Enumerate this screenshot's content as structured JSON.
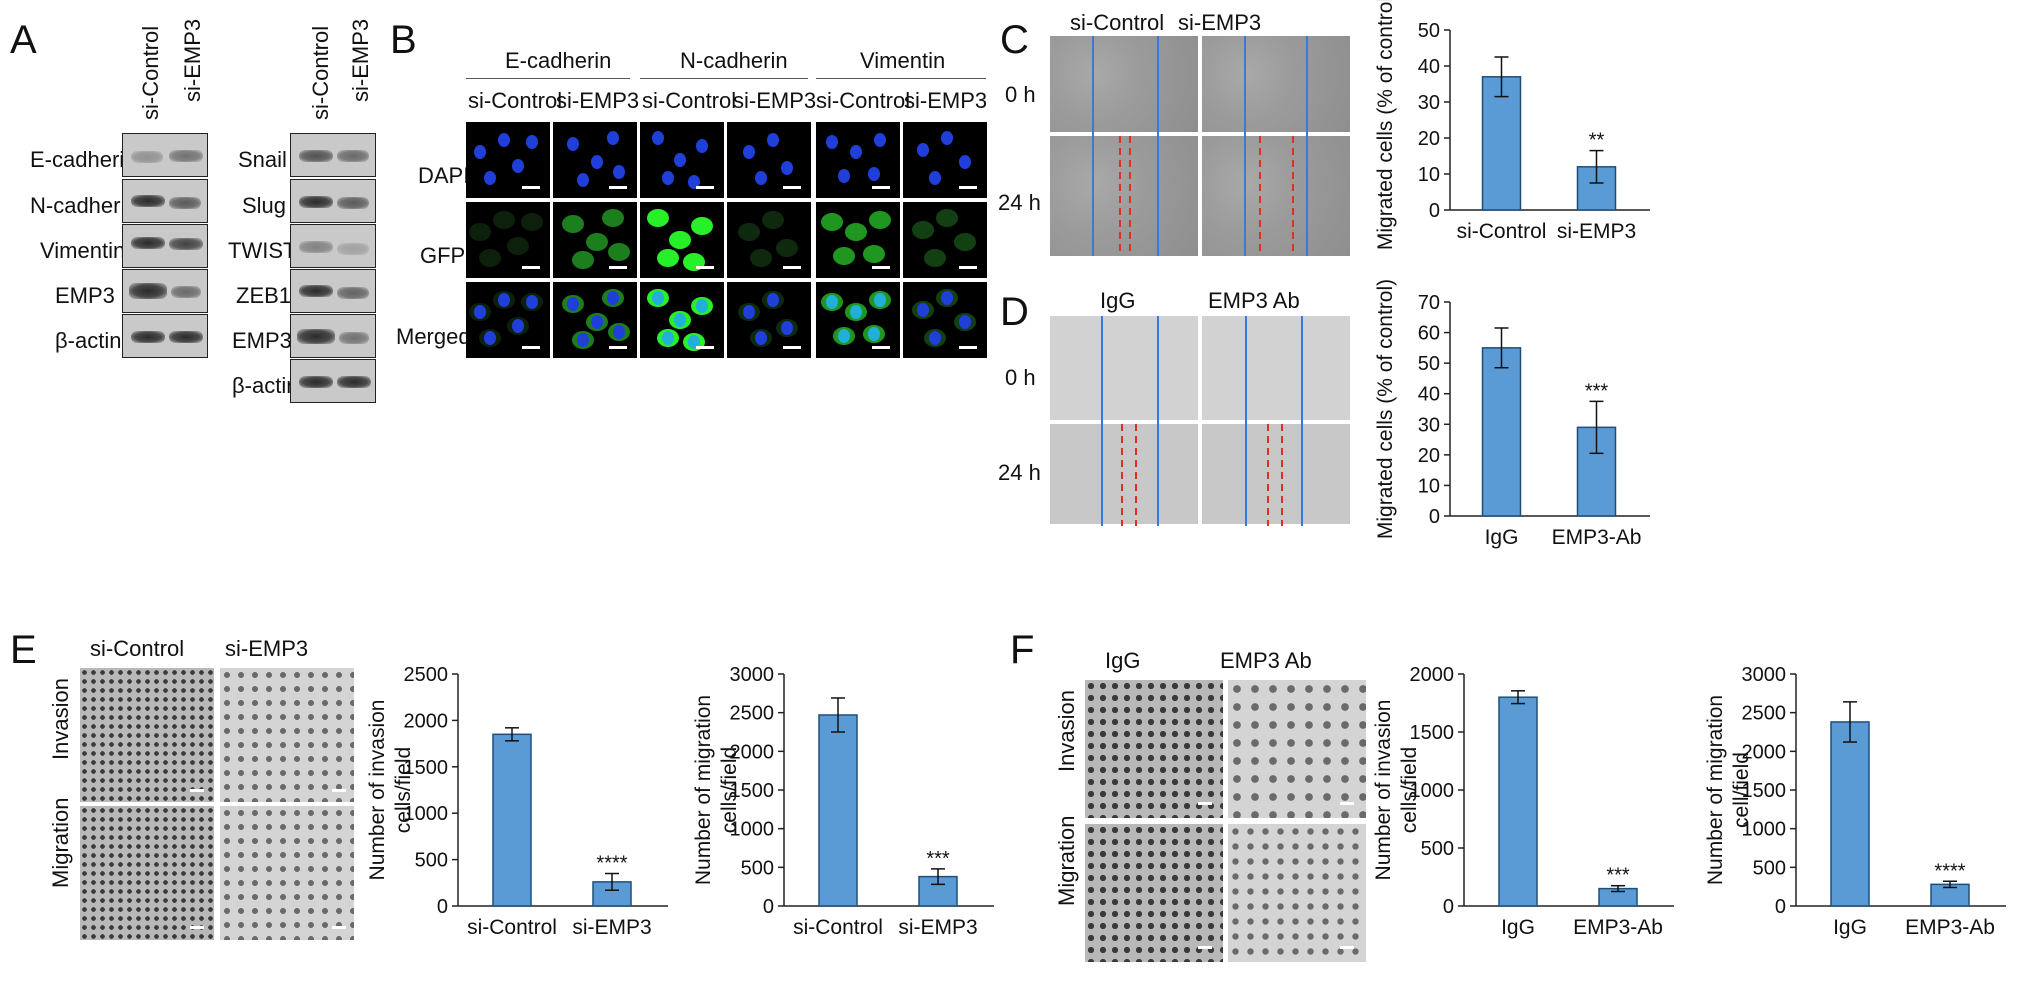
{
  "panels": [
    "A",
    "B",
    "C",
    "D",
    "E",
    "F"
  ],
  "panel_a": {
    "lanes": [
      "si-Control",
      "si-EMP3"
    ],
    "left_rows": [
      "E-cadherin",
      "N-cadherin",
      "Vimentin",
      "EMP3",
      "β-actin"
    ],
    "right_rows": [
      "Snail",
      "Slug",
      "TWIST",
      "ZEB1",
      "EMP3",
      "β-actin"
    ]
  },
  "panel_b": {
    "groups": [
      "E-cadherin",
      "N-cadherin",
      "Vimentin"
    ],
    "columns": [
      "si-Control",
      "si-EMP3",
      "si-Control",
      "si-EMP3",
      "si-Control",
      "si-EMP3"
    ],
    "rows": [
      "DAPI",
      "GFP",
      "Merged"
    ]
  },
  "panel_c": {
    "columns": [
      "si-Control",
      "si-EMP3"
    ],
    "times": [
      "0 h",
      "24 h"
    ]
  },
  "panel_d": {
    "columns": [
      "IgG",
      "EMP3 Ab"
    ],
    "times": [
      "0 h",
      "24 h"
    ]
  },
  "panel_e": {
    "columns": [
      "si-Control",
      "si-EMP3"
    ],
    "rows": [
      "Invasion",
      "Migration"
    ]
  },
  "panel_f": {
    "columns": [
      "IgG",
      "EMP3 Ab"
    ],
    "rows": [
      "Invasion",
      "Migration"
    ]
  },
  "colors": {
    "bar": "#5b9bd5",
    "bar_edge": "#1f4e79",
    "wound_line": "#3c78d8",
    "front_line": "#e03020"
  },
  "chart_data": [
    {
      "id": "C",
      "type": "bar",
      "categories": [
        "si-Control",
        "si-EMP3"
      ],
      "values": [
        37,
        12
      ],
      "errors": [
        5.5,
        4.5
      ],
      "significance": [
        "",
        "**"
      ],
      "ylabel": "Migrated cells (% of control)",
      "ylim": [
        0,
        50
      ],
      "yticks": [
        0,
        10,
        20,
        30,
        40,
        50
      ]
    },
    {
      "id": "D",
      "type": "bar",
      "categories": [
        "IgG",
        "EMP3-Ab"
      ],
      "values": [
        55,
        29
      ],
      "errors": [
        6.5,
        8.5
      ],
      "significance": [
        "",
        "***"
      ],
      "ylabel": "Migrated cells (% of control)",
      "ylim": [
        0,
        70
      ],
      "yticks": [
        0,
        10,
        20,
        30,
        40,
        50,
        60,
        70
      ]
    },
    {
      "id": "E1",
      "type": "bar",
      "categories": [
        "si-Control",
        "si-EMP3"
      ],
      "values": [
        1850,
        260
      ],
      "errors": [
        70,
        90
      ],
      "significance": [
        "",
        "****"
      ],
      "ylabel": "Number of invasion cells/field",
      "ylim": [
        0,
        2500
      ],
      "yticks": [
        0,
        500,
        1000,
        1500,
        2000,
        2500
      ]
    },
    {
      "id": "E2",
      "type": "bar",
      "categories": [
        "si-Control",
        "si-EMP3"
      ],
      "values": [
        2470,
        380
      ],
      "errors": [
        220,
        100
      ],
      "significance": [
        "",
        "***"
      ],
      "ylabel": "Number of migration cells/field",
      "ylim": [
        0,
        3000
      ],
      "yticks": [
        0,
        500,
        1000,
        1500,
        2000,
        2500,
        3000
      ]
    },
    {
      "id": "F1",
      "type": "bar",
      "categories": [
        "IgG",
        "EMP3-Ab"
      ],
      "values": [
        1800,
        150
      ],
      "errors": [
        55,
        25
      ],
      "significance": [
        "",
        "***"
      ],
      "ylabel": "Number of invasion cells/field",
      "ylim": [
        0,
        2000
      ],
      "yticks": [
        0,
        500,
        1000,
        1500,
        2000
      ]
    },
    {
      "id": "F2",
      "type": "bar",
      "categories": [
        "IgG",
        "EMP3-Ab"
      ],
      "values": [
        2380,
        280
      ],
      "errors": [
        260,
        40
      ],
      "significance": [
        "",
        "****"
      ],
      "ylabel": "Number of migration cell/field",
      "ylim": [
        0,
        3000
      ],
      "yticks": [
        0,
        500,
        1000,
        1500,
        2000,
        2500,
        3000
      ]
    }
  ]
}
